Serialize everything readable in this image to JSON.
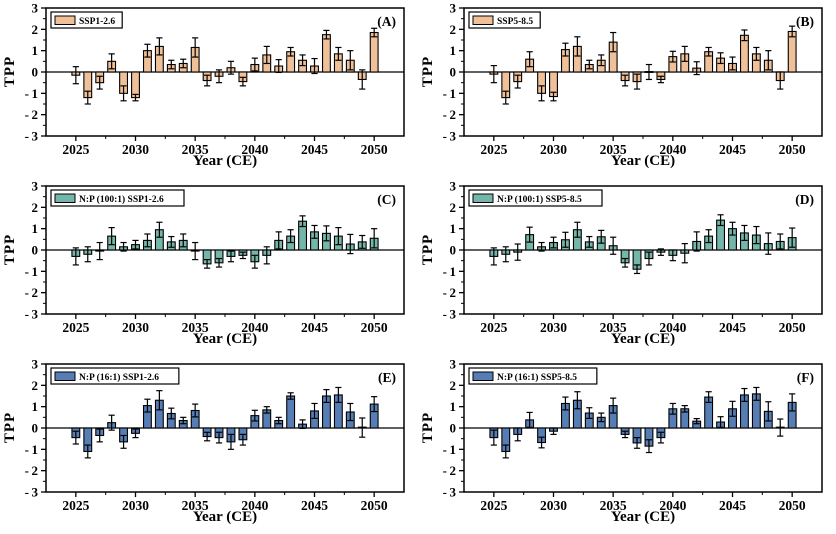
{
  "figure": {
    "background": "#ffffff",
    "frame_color": "#000000"
  },
  "chart_data": {
    "type": "bar",
    "title": "",
    "xlabel": "Year (CE)",
    "ylabel": "TPP",
    "xlim": [
      2022.5,
      2052.5
    ],
    "ylim": [
      -3,
      3
    ],
    "xticks": [
      2025,
      2030,
      2035,
      2040,
      2045,
      2050
    ],
    "yticks": [
      3,
      2,
      1,
      0,
      -1,
      -2,
      -3
    ],
    "grid": false,
    "error_bars": true,
    "legend_position": "top-left-inside",
    "categories": [
      2025,
      2026,
      2027,
      2028,
      2029,
      2030,
      2031,
      2032,
      2033,
      2034,
      2035,
      2036,
      2037,
      2038,
      2039,
      2040,
      2041,
      2042,
      2043,
      2044,
      2045,
      2046,
      2047,
      2048,
      2049,
      2050
    ],
    "panels": [
      {
        "label": "(A)",
        "legend": "SSP1-2.6",
        "color": "#F0C198",
        "values": [
          -0.15,
          -1.2,
          -0.5,
          0.5,
          -1.0,
          -1.2,
          1.0,
          1.2,
          0.35,
          0.4,
          1.15,
          -0.4,
          -0.2,
          0.2,
          -0.45,
          0.35,
          0.8,
          0.28,
          0.95,
          0.55,
          0.28,
          1.75,
          0.85,
          0.55,
          -0.35,
          1.85
        ],
        "errors": [
          0.4,
          0.3,
          0.3,
          0.35,
          0.35,
          0.15,
          0.3,
          0.4,
          0.2,
          0.2,
          0.45,
          0.25,
          0.3,
          0.3,
          0.2,
          0.3,
          0.4,
          0.3,
          0.2,
          0.25,
          0.35,
          0.2,
          0.3,
          0.45,
          0.45,
          0.2
        ]
      },
      {
        "label": "(B)",
        "legend": "SSP5-8.5",
        "color": "#F0C198",
        "values": [
          -0.1,
          -1.2,
          -0.45,
          0.6,
          -1.0,
          -1.15,
          1.05,
          1.2,
          0.35,
          0.55,
          1.4,
          -0.4,
          -0.45,
          0.0,
          -0.35,
          0.72,
          0.85,
          0.18,
          0.95,
          0.65,
          0.4,
          1.72,
          0.85,
          0.55,
          -0.4,
          1.9
        ],
        "errors": [
          0.4,
          0.3,
          0.3,
          0.35,
          0.35,
          0.2,
          0.3,
          0.45,
          0.2,
          0.25,
          0.45,
          0.25,
          0.35,
          0.35,
          0.15,
          0.25,
          0.35,
          0.3,
          0.2,
          0.25,
          0.3,
          0.25,
          0.3,
          0.45,
          0.4,
          0.25
        ]
      },
      {
        "label": "(C)",
        "legend": "N:P (100:1) SSP1-2.6",
        "color": "#74B6A9",
        "values": [
          -0.3,
          -0.2,
          -0.05,
          0.65,
          0.15,
          0.25,
          0.45,
          0.95,
          0.38,
          0.45,
          -0.05,
          -0.65,
          -0.6,
          -0.3,
          -0.25,
          -0.55,
          -0.25,
          0.45,
          0.65,
          1.35,
          0.85,
          0.78,
          0.65,
          0.28,
          0.38,
          0.55
        ],
        "errors": [
          0.4,
          0.35,
          0.4,
          0.4,
          0.2,
          0.2,
          0.3,
          0.35,
          0.25,
          0.3,
          0.4,
          0.2,
          0.2,
          0.25,
          0.15,
          0.3,
          0.4,
          0.4,
          0.3,
          0.25,
          0.3,
          0.35,
          0.4,
          0.45,
          0.3,
          0.45
        ]
      },
      {
        "label": "(D)",
        "legend": "N:P (100:1) SSP5-8.5",
        "color": "#74B6A9",
        "values": [
          -0.3,
          -0.2,
          -0.1,
          0.72,
          0.15,
          0.35,
          0.48,
          0.95,
          0.38,
          0.62,
          0.2,
          -0.6,
          -0.9,
          -0.4,
          -0.1,
          -0.25,
          -0.15,
          0.4,
          0.65,
          1.4,
          1.0,
          0.8,
          0.7,
          0.3,
          0.4,
          0.58
        ],
        "errors": [
          0.4,
          0.35,
          0.38,
          0.35,
          0.2,
          0.25,
          0.35,
          0.35,
          0.25,
          0.3,
          0.4,
          0.2,
          0.2,
          0.3,
          0.15,
          0.25,
          0.45,
          0.45,
          0.3,
          0.25,
          0.3,
          0.35,
          0.4,
          0.5,
          0.35,
          0.45
        ]
      },
      {
        "label": "(E)",
        "legend": "N:P (16:1) SSP1-2.6",
        "color": "#567EB5",
        "values": [
          -0.45,
          -1.1,
          -0.35,
          0.25,
          -0.65,
          -0.25,
          1.05,
          1.3,
          0.68,
          0.35,
          0.82,
          -0.4,
          -0.45,
          -0.65,
          -0.55,
          0.58,
          0.85,
          0.35,
          1.5,
          0.18,
          0.8,
          1.5,
          1.55,
          0.75,
          0.02,
          1.12
        ],
        "errors": [
          0.3,
          0.3,
          0.3,
          0.35,
          0.3,
          0.2,
          0.3,
          0.45,
          0.25,
          0.15,
          0.3,
          0.2,
          0.25,
          0.35,
          0.25,
          0.25,
          0.15,
          0.15,
          0.15,
          0.2,
          0.35,
          0.3,
          0.35,
          0.4,
          0.45,
          0.35
        ]
      },
      {
        "label": "(F)",
        "legend": "N:P (16:1) SSP5-8.5",
        "color": "#567EB5",
        "values": [
          -0.45,
          -1.1,
          -0.3,
          0.38,
          -0.68,
          -0.15,
          1.15,
          1.3,
          0.7,
          0.5,
          1.05,
          -0.3,
          -0.7,
          -0.85,
          -0.45,
          0.9,
          0.9,
          0.32,
          1.45,
          0.28,
          0.9,
          1.55,
          1.6,
          0.78,
          0.02,
          1.2
        ],
        "errors": [
          0.35,
          0.3,
          0.3,
          0.35,
          0.25,
          0.15,
          0.3,
          0.4,
          0.25,
          0.2,
          0.35,
          0.15,
          0.25,
          0.3,
          0.25,
          0.25,
          0.15,
          0.12,
          0.25,
          0.25,
          0.35,
          0.3,
          0.3,
          0.45,
          0.4,
          0.4
        ]
      }
    ]
  }
}
